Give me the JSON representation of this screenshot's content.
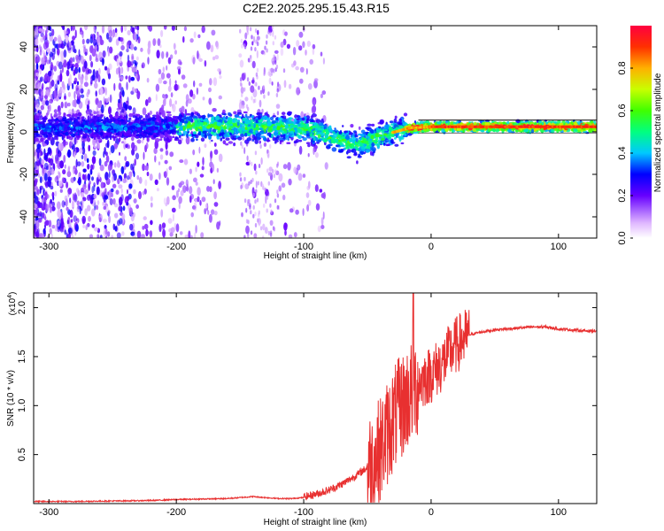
{
  "title": "C2E2.2025.295.15.43.R15",
  "chart_data": [
    {
      "type": "heatmap",
      "title": "C2E2.2025.295.15.43.R15",
      "xlabel": "Height of straight line (km)",
      "ylabel": "Frequency (Hz)",
      "xlim": [
        -312,
        130
      ],
      "ylim": [
        -50,
        50
      ],
      "xticks": [
        -300,
        -200,
        -100,
        0,
        100
      ],
      "yticks": [
        -40,
        -20,
        0,
        20,
        40
      ],
      "ridge_x": [
        -312,
        -250,
        -200,
        -160,
        -130,
        -110,
        -95,
        -85,
        -75,
        -65,
        -58,
        -50,
        -42,
        -35,
        -28,
        -22,
        -15,
        -10,
        -5,
        0,
        10,
        30,
        60,
        90,
        130
      ],
      "ridge_y": [
        2,
        2,
        2.5,
        2.5,
        2,
        2,
        1,
        -1,
        -3,
        -5,
        -6,
        -4.5,
        -2.5,
        -1,
        0,
        1,
        2,
        2,
        2.2,
        2.4,
        2.4,
        2.4,
        2.4,
        2.4,
        2.4
      ],
      "colorbar": {
        "label": "Normalized spectral amplitude",
        "range": [
          0,
          1
        ],
        "ticks": [
          0.0,
          0.2,
          0.4,
          0.6,
          0.8
        ],
        "tick_labels": [
          "0.0",
          "0.2",
          "0.4",
          "0.6",
          "0.8"
        ]
      }
    },
    {
      "type": "line",
      "xlabel": "Height of straight line (km)",
      "ylabel": "SNR (10 * v/v)",
      "scale_label": "(x10",
      "scale_exp": "4",
      "scale_close": ")",
      "xlim": [
        -312,
        130
      ],
      "ylim": [
        0.0,
        2.15
      ],
      "xticks": [
        -300,
        -200,
        -100,
        0,
        100
      ],
      "yticks": [
        0.5,
        1.0,
        1.5,
        2.0
      ],
      "ytick_labels": [
        "0.5",
        "1.0",
        "1.5",
        "2.0"
      ],
      "color": "#e83030",
      "series": [
        {
          "name": "SNR",
          "x": [
            -312,
            -280,
            -250,
            -220,
            -200,
            -180,
            -160,
            -150,
            -140,
            -130,
            -120,
            -110,
            -100,
            -90,
            -80,
            -70,
            -60,
            -50,
            -45,
            -40,
            -35,
            -30,
            -25,
            -20,
            -15,
            -10,
            -5,
            0,
            5,
            10,
            15,
            20,
            25,
            30,
            40,
            50,
            60,
            70,
            80,
            90,
            100,
            110,
            120,
            130
          ],
          "y": [
            0.02,
            0.02,
            0.025,
            0.03,
            0.04,
            0.045,
            0.05,
            0.06,
            0.07,
            0.06,
            0.05,
            0.05,
            0.06,
            0.09,
            0.13,
            0.19,
            0.27,
            0.36,
            0.45,
            0.55,
            0.7,
            0.85,
            0.95,
            1.05,
            1.15,
            1.22,
            1.28,
            1.32,
            1.38,
            1.45,
            1.55,
            1.62,
            1.68,
            1.72,
            1.75,
            1.77,
            1.78,
            1.79,
            1.8,
            1.8,
            1.78,
            1.77,
            1.76,
            1.76
          ]
        }
      ]
    }
  ]
}
